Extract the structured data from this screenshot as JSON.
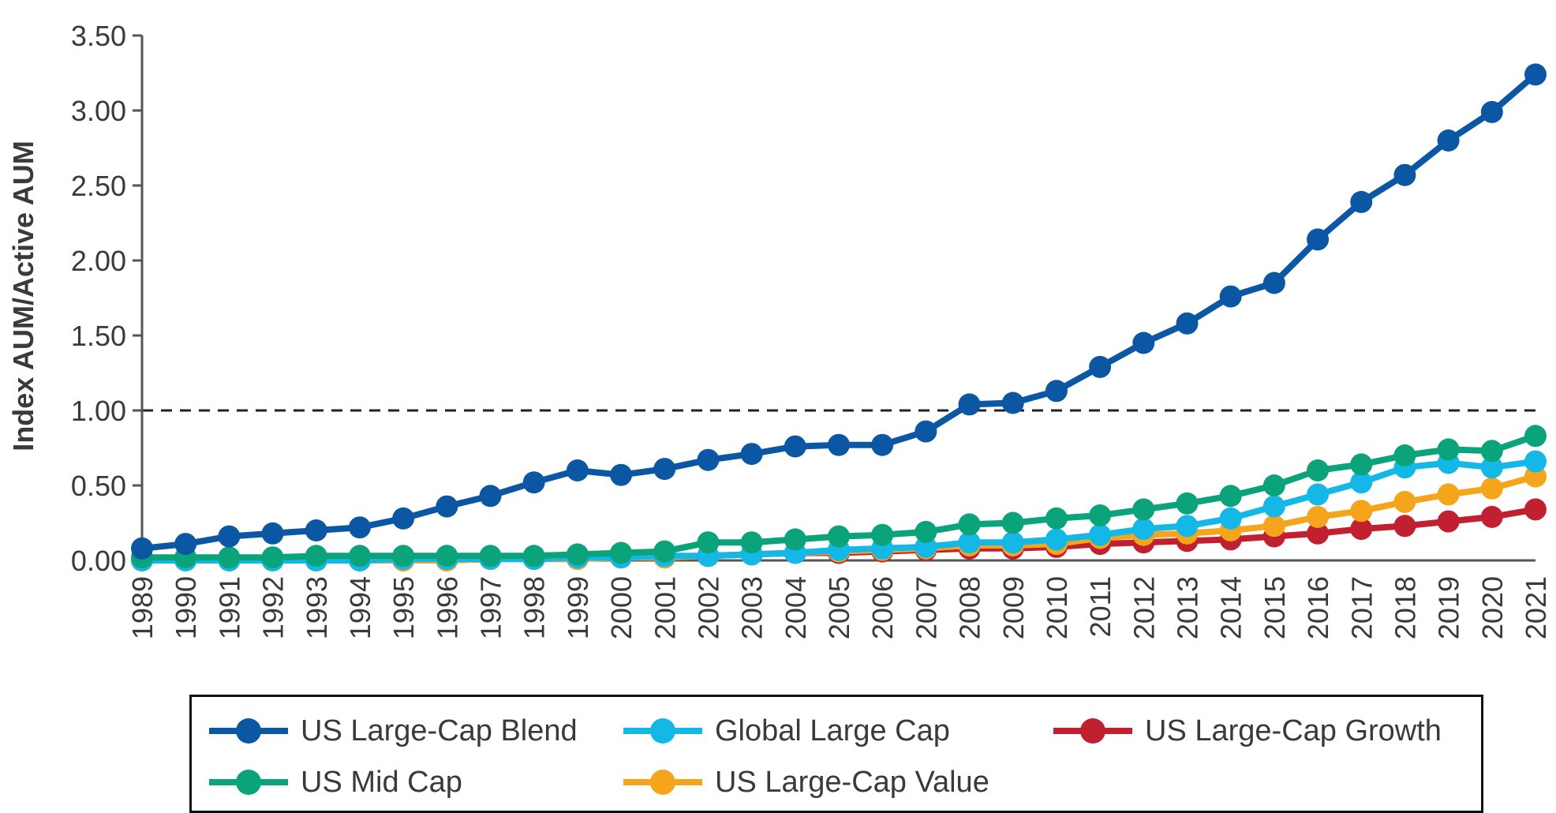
{
  "chart_data": {
    "type": "line",
    "title": "",
    "xlabel": "",
    "ylabel": "Index AUM/Active AUM",
    "ylim": [
      0,
      3.5
    ],
    "yticks": [
      "0.00",
      "0.50",
      "1.00",
      "1.50",
      "2.00",
      "2.50",
      "3.00",
      "3.50"
    ],
    "reference_line": {
      "y": 1.0,
      "style": "dashed"
    },
    "legend_position": "bottom",
    "x": [
      "1989",
      "1990",
      "1991",
      "1992",
      "1993",
      "1994",
      "1995",
      "1996",
      "1997",
      "1998",
      "1999",
      "2000",
      "2001",
      "2002",
      "2003",
      "2004",
      "2005",
      "2006",
      "2007",
      "2008",
      "2009",
      "2010",
      "2011",
      "2012",
      "2013",
      "2014",
      "2015",
      "2016",
      "2017",
      "2018",
      "2019",
      "2020",
      "2021"
    ],
    "series": [
      {
        "name": "US Large-Cap Blend",
        "color": "#0b57a4",
        "values": [
          0.08,
          0.11,
          0.16,
          0.18,
          0.2,
          0.22,
          0.28,
          0.36,
          0.43,
          0.52,
          0.6,
          0.57,
          0.61,
          0.67,
          0.71,
          0.76,
          0.77,
          0.77,
          0.86,
          1.04,
          1.05,
          1.13,
          1.29,
          1.45,
          1.58,
          1.76,
          1.85,
          2.14,
          2.39,
          2.57,
          2.8,
          2.99,
          3.24
        ]
      },
      {
        "name": "US Mid Cap",
        "color": "#0aa37a",
        "values": [
          0.02,
          0.02,
          0.02,
          0.02,
          0.03,
          0.03,
          0.03,
          0.03,
          0.03,
          0.03,
          0.04,
          0.05,
          0.06,
          0.12,
          0.12,
          0.14,
          0.16,
          0.17,
          0.19,
          0.24,
          0.25,
          0.28,
          0.3,
          0.34,
          0.38,
          0.43,
          0.5,
          0.6,
          0.64,
          0.7,
          0.74,
          0.73,
          0.83
        ]
      },
      {
        "name": "Global Large Cap",
        "color": "#14b8e6",
        "values": [
          0.0,
          0.0,
          0.0,
          0.0,
          0.0,
          0.0,
          0.01,
          0.01,
          0.01,
          0.01,
          0.02,
          0.02,
          0.03,
          0.03,
          0.04,
          0.05,
          0.07,
          0.08,
          0.09,
          0.12,
          0.12,
          0.14,
          0.17,
          0.21,
          0.23,
          0.28,
          0.36,
          0.44,
          0.52,
          0.62,
          0.65,
          0.62,
          0.66
        ]
      },
      {
        "name": "US Large-Cap Value",
        "color": "#f5a51c",
        "values": [
          0.0,
          0.0,
          0.0,
          0.0,
          0.0,
          0.0,
          0.0,
          0.0,
          0.01,
          0.01,
          0.01,
          0.02,
          0.02,
          0.03,
          0.04,
          0.05,
          0.06,
          0.07,
          0.08,
          0.1,
          0.1,
          0.11,
          0.15,
          0.17,
          0.18,
          0.2,
          0.23,
          0.29,
          0.33,
          0.39,
          0.44,
          0.48,
          0.56
        ]
      },
      {
        "name": "US Large-Cap Growth",
        "color": "#c0202f",
        "values": [
          0.0,
          0.0,
          0.0,
          0.0,
          0.0,
          0.0,
          0.0,
          0.0,
          0.01,
          0.01,
          0.01,
          0.02,
          0.02,
          0.03,
          0.04,
          0.05,
          0.05,
          0.06,
          0.07,
          0.08,
          0.08,
          0.09,
          0.11,
          0.12,
          0.13,
          0.14,
          0.16,
          0.18,
          0.21,
          0.23,
          0.26,
          0.29,
          0.34
        ]
      }
    ]
  },
  "title_text": "",
  "legend": {
    "items": [
      {
        "label": "US Large-Cap Blend",
        "color": "#0b57a4"
      },
      {
        "label": "Global Large Cap",
        "color": "#14b8e6"
      },
      {
        "label": "US Large-Cap Growth",
        "color": "#c0202f"
      },
      {
        "label": "US Mid Cap",
        "color": "#0aa37a"
      },
      {
        "label": "US Large-Cap Value",
        "color": "#f5a51c"
      }
    ]
  }
}
